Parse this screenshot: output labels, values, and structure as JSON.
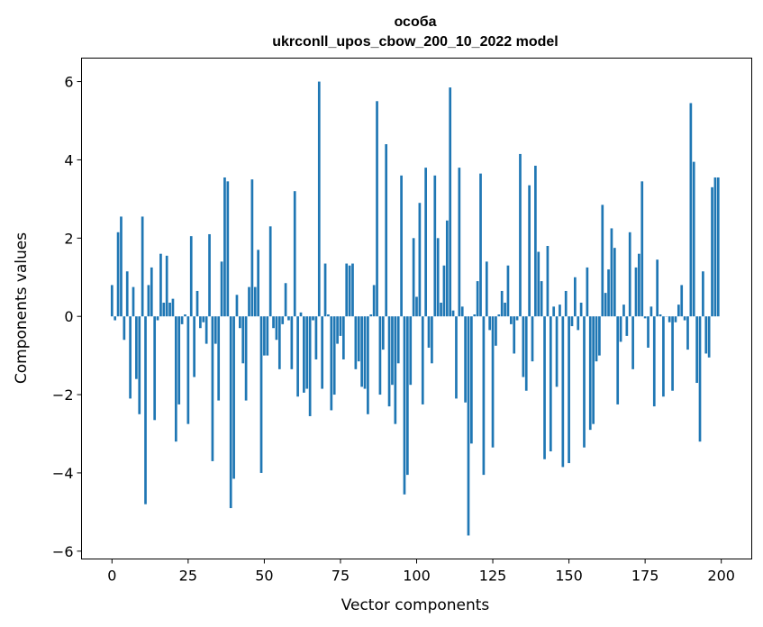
{
  "chart_data": {
    "type": "bar",
    "title": [
      "особа",
      "ukrconll_upos_cbow_200_10_2022 model"
    ],
    "xlabel": "Vector components",
    "ylabel": "Components values",
    "xlim": [
      -10,
      210
    ],
    "ylim": [
      -6.2,
      6.6
    ],
    "xticks": [
      0,
      25,
      50,
      75,
      100,
      125,
      150,
      175,
      200
    ],
    "yticks": [
      -6,
      -4,
      -2,
      0,
      2,
      4,
      6
    ],
    "xtick_labels": [
      "0",
      "25",
      "50",
      "75",
      "100",
      "125",
      "150",
      "175",
      "200"
    ],
    "ytick_labels": [
      "−6",
      "−4",
      "−2",
      "0",
      "2",
      "4",
      "6"
    ],
    "grid": false,
    "bar_color": "#1f77b4",
    "values": [
      0.8,
      -0.1,
      2.15,
      2.55,
      -0.6,
      1.15,
      -2.1,
      0.75,
      -1.6,
      -2.5,
      2.55,
      -4.8,
      0.8,
      1.25,
      -2.65,
      -0.1,
      1.6,
      0.35,
      1.55,
      0.35,
      0.45,
      -3.2,
      -2.25,
      -0.2,
      0.05,
      -2.75,
      2.05,
      -1.55,
      0.65,
      -0.3,
      -0.15,
      -0.7,
      2.1,
      -3.7,
      -0.7,
      -2.15,
      1.4,
      3.55,
      3.45,
      -4.9,
      -4.15,
      0.55,
      -0.3,
      -1.2,
      -2.15,
      0.75,
      3.5,
      0.75,
      1.7,
      -4.0,
      -1.0,
      -1.0,
      2.3,
      -0.3,
      -0.6,
      -1.35,
      -0.2,
      0.85,
      -0.1,
      -1.35,
      3.2,
      -2.05,
      0.1,
      -1.95,
      -1.85,
      -2.55,
      -0.1,
      -1.1,
      6.0,
      -1.85,
      1.35,
      0.05,
      -2.4,
      -2.0,
      -0.7,
      -0.5,
      -1.1,
      1.35,
      1.3,
      1.35,
      -1.35,
      -1.15,
      -1.8,
      -1.85,
      -2.5,
      0.05,
      0.8,
      5.5,
      -2.0,
      -0.85,
      4.4,
      -2.3,
      -1.75,
      -2.75,
      -1.2,
      3.6,
      -4.55,
      -4.05,
      -1.75,
      2.0,
      0.5,
      2.9,
      -2.25,
      3.8,
      -0.8,
      -1.2,
      3.6,
      2.0,
      0.35,
      1.3,
      2.45,
      5.85,
      0.15,
      -2.1,
      3.8,
      0.25,
      -2.2,
      -5.6,
      -3.25,
      0.05,
      0.9,
      3.65,
      -4.05,
      1.4,
      -0.35,
      -3.35,
      -0.75,
      0.05,
      0.65,
      0.35,
      1.3,
      -0.2,
      -0.95,
      -0.1,
      4.15,
      -1.55,
      -1.9,
      3.35,
      -1.15,
      3.85,
      1.65,
      0.9,
      -3.65,
      1.8,
      -3.45,
      0.25,
      -1.8,
      0.3,
      -3.85,
      0.65,
      -3.75,
      -0.25,
      1.0,
      -0.35,
      0.35,
      -3.35,
      1.25,
      -2.9,
      -2.75,
      -1.15,
      -1.0,
      2.85,
      0.6,
      1.2,
      2.25,
      1.75,
      -2.25,
      -0.65,
      0.3,
      -0.5,
      2.15,
      -1.35,
      1.25,
      1.6,
      3.45,
      -0.05,
      -0.8,
      0.25,
      -2.3,
      1.45,
      0.05,
      -2.05,
      0.0,
      -0.15,
      -1.9,
      -0.15,
      0.3,
      0.8,
      -0.1,
      -0.85,
      5.45,
      3.95,
      -1.7,
      -3.2,
      1.15,
      -0.95,
      -1.05,
      3.3,
      3.55,
      3.55
    ]
  }
}
